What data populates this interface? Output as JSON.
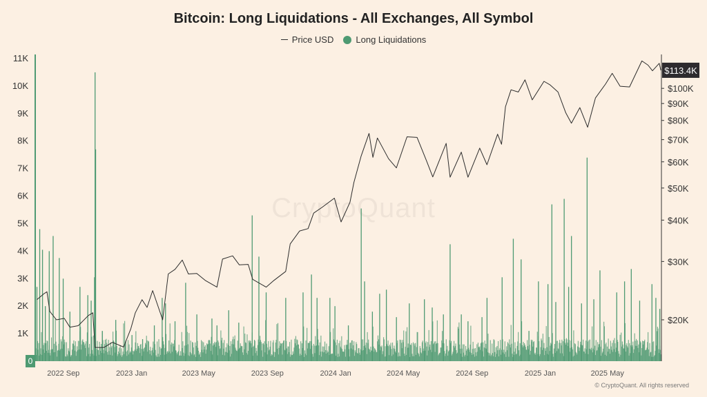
{
  "title": "Bitcoin: Long Liquidations - All Exchanges, All Symbol",
  "legend": {
    "price_label": "Price USD",
    "liq_label": "Long Liquidations"
  },
  "watermark": "CryptoQuant",
  "copyright": "© CryptoQuant. All rights reserved",
  "colors": {
    "background": "#fcf0e3",
    "price_line": "#2b2b2b",
    "liquidation": "#4e9a72",
    "tag_bg": "#2e2b2e"
  },
  "chart_data": {
    "type": "bar",
    "title": "Bitcoin: Long Liquidations - All Exchanges, All Symbol",
    "left_axis": {
      "ticks": [
        "0",
        "1K",
        "2K",
        "3K",
        "4K",
        "5K",
        "6K",
        "7K",
        "8K",
        "9K",
        "10K",
        "11K"
      ],
      "ylim": [
        0,
        11000
      ]
    },
    "right_axis": {
      "scale": "log",
      "ticks": [
        "$20K",
        "$30K",
        "$40K",
        "$50K",
        "$60K",
        "$70K",
        "$80K",
        "$90K",
        "$100K"
      ],
      "tick_values": [
        20000,
        30000,
        40000,
        50000,
        60000,
        70000,
        80000,
        90000,
        100000
      ],
      "ylim": [
        15000,
        123000
      ]
    },
    "current_price_label": "$113.4K",
    "x_ticks": [
      "2022 Sep",
      "2023 Jan",
      "2023 May",
      "2023 Sep",
      "2024 Jan",
      "2024 May",
      "2024 Sep",
      "2025 Jan",
      "2025 May"
    ],
    "x_tick_dates": [
      "2022-09-01",
      "2023-01-01",
      "2023-05-01",
      "2023-09-01",
      "2024-01-01",
      "2024-05-01",
      "2024-09-01",
      "2025-01-01",
      "2025-05-01"
    ],
    "xlim": [
      "2022-07-25",
      "2025-08-18"
    ],
    "series": [
      {
        "name": "Price USD",
        "type": "line",
        "points": [
          [
            "2022-07-28",
            23000
          ],
          [
            "2022-08-10",
            24000
          ],
          [
            "2022-08-15",
            24300
          ],
          [
            "2022-08-20",
            21200
          ],
          [
            "2022-09-01",
            20000
          ],
          [
            "2022-09-15",
            20200
          ],
          [
            "2022-09-25",
            19000
          ],
          [
            "2022-10-10",
            19200
          ],
          [
            "2022-10-28",
            20600
          ],
          [
            "2022-11-05",
            21000
          ],
          [
            "2022-11-09",
            16500
          ],
          [
            "2022-11-25",
            16500
          ],
          [
            "2022-12-10",
            17100
          ],
          [
            "2022-12-30",
            16550
          ],
          [
            "2023-01-12",
            18800
          ],
          [
            "2023-01-20",
            21000
          ],
          [
            "2023-02-01",
            23000
          ],
          [
            "2023-02-10",
            21800
          ],
          [
            "2023-02-20",
            24500
          ],
          [
            "2023-03-10",
            20000
          ],
          [
            "2023-03-20",
            27500
          ],
          [
            "2023-04-01",
            28400
          ],
          [
            "2023-04-14",
            30300
          ],
          [
            "2023-04-25",
            27500
          ],
          [
            "2023-05-10",
            27600
          ],
          [
            "2023-05-25",
            26300
          ],
          [
            "2023-06-15",
            25100
          ],
          [
            "2023-06-25",
            30500
          ],
          [
            "2023-07-13",
            31200
          ],
          [
            "2023-07-25",
            29300
          ],
          [
            "2023-08-10",
            29400
          ],
          [
            "2023-08-18",
            26500
          ],
          [
            "2023-09-11",
            25100
          ],
          [
            "2023-09-25",
            26300
          ],
          [
            "2023-10-16",
            28000
          ],
          [
            "2023-10-24",
            33900
          ],
          [
            "2023-11-10",
            37100
          ],
          [
            "2023-11-25",
            37700
          ],
          [
            "2023-12-05",
            42000
          ],
          [
            "2023-12-20",
            43700
          ],
          [
            "2024-01-11",
            46600
          ],
          [
            "2024-01-23",
            39500
          ],
          [
            "2024-02-08",
            45300
          ],
          [
            "2024-02-15",
            52000
          ],
          [
            "2024-02-28",
            62500
          ],
          [
            "2024-03-13",
            73100
          ],
          [
            "2024-03-20",
            61900
          ],
          [
            "2024-03-28",
            70800
          ],
          [
            "2024-04-17",
            61300
          ],
          [
            "2024-05-01",
            57500
          ],
          [
            "2024-05-20",
            71400
          ],
          [
            "2024-06-07",
            71100
          ],
          [
            "2024-06-24",
            60300
          ],
          [
            "2024-07-05",
            54000
          ],
          [
            "2024-07-29",
            68200
          ],
          [
            "2024-08-05",
            53900
          ],
          [
            "2024-08-25",
            64200
          ],
          [
            "2024-09-06",
            53900
          ],
          [
            "2024-09-27",
            66000
          ],
          [
            "2024-10-10",
            58800
          ],
          [
            "2024-10-29",
            72700
          ],
          [
            "2024-11-05",
            67800
          ],
          [
            "2024-11-12",
            88000
          ],
          [
            "2024-11-22",
            99000
          ],
          [
            "2024-12-05",
            97500
          ],
          [
            "2024-12-17",
            106100
          ],
          [
            "2024-12-30",
            92300
          ],
          [
            "2025-01-20",
            105000
          ],
          [
            "2025-01-31",
            102400
          ],
          [
            "2025-02-14",
            97500
          ],
          [
            "2025-02-28",
            84300
          ],
          [
            "2025-03-10",
            78500
          ],
          [
            "2025-03-25",
            87500
          ],
          [
            "2025-04-08",
            76300
          ],
          [
            "2025-04-22",
            93500
          ],
          [
            "2025-05-10",
            103000
          ],
          [
            "2025-05-22",
            111000
          ],
          [
            "2025-06-05",
            101500
          ],
          [
            "2025-06-22",
            101000
          ],
          [
            "2025-07-14",
            121000
          ],
          [
            "2025-07-25",
            117500
          ],
          [
            "2025-08-02",
            113000
          ],
          [
            "2025-08-14",
            119000
          ],
          [
            "2025-08-17",
            113400
          ]
        ]
      },
      {
        "name": "Long Liquidations",
        "type": "bar",
        "spikes": [
          [
            "2022-07-28",
            2700
          ],
          [
            "2022-08-02",
            4800
          ],
          [
            "2022-08-07",
            4050
          ],
          [
            "2022-08-12",
            2000
          ],
          [
            "2022-08-19",
            4000
          ],
          [
            "2022-08-26",
            4550
          ],
          [
            "2022-09-06",
            3750
          ],
          [
            "2022-09-13",
            3000
          ],
          [
            "2022-09-25",
            1800
          ],
          [
            "2022-10-13",
            2700
          ],
          [
            "2022-10-27",
            2400
          ],
          [
            "2022-11-02",
            2200
          ],
          [
            "2022-11-08",
            3050
          ],
          [
            "2022-11-09",
            10500
          ],
          [
            "2022-11-10",
            7700
          ],
          [
            "2022-11-22",
            1100
          ],
          [
            "2022-12-16",
            1500
          ],
          [
            "2023-01-14",
            950
          ],
          [
            "2023-02-02",
            800
          ],
          [
            "2023-02-23",
            1300
          ],
          [
            "2023-03-09",
            2300
          ],
          [
            "2023-03-15",
            2100
          ],
          [
            "2023-04-01",
            1450
          ],
          [
            "2023-04-20",
            2850
          ],
          [
            "2023-05-10",
            1700
          ],
          [
            "2023-06-06",
            1550
          ],
          [
            "2023-06-15",
            1300
          ],
          [
            "2023-07-06",
            1850
          ],
          [
            "2023-07-24",
            1400
          ],
          [
            "2023-08-17",
            5300
          ],
          [
            "2023-08-29",
            3800
          ],
          [
            "2023-09-11",
            2500
          ],
          [
            "2023-10-16",
            2300
          ],
          [
            "2023-11-16",
            2500
          ],
          [
            "2023-12-01",
            3150
          ],
          [
            "2023-12-11",
            2300
          ],
          [
            "2024-01-03",
            2300
          ],
          [
            "2024-01-12",
            2000
          ],
          [
            "2024-02-05",
            1300
          ],
          [
            "2024-02-28",
            5550
          ],
          [
            "2024-03-05",
            2900
          ],
          [
            "2024-03-19",
            1800
          ],
          [
            "2024-04-01",
            2450
          ],
          [
            "2024-04-13",
            2600
          ],
          [
            "2024-05-01",
            1600
          ],
          [
            "2024-05-24",
            2100
          ],
          [
            "2024-06-20",
            2250
          ],
          [
            "2024-07-04",
            1950
          ],
          [
            "2024-07-24",
            1700
          ],
          [
            "2024-08-05",
            4250
          ],
          [
            "2024-08-25",
            1700
          ],
          [
            "2024-09-06",
            1450
          ],
          [
            "2024-10-01",
            1600
          ],
          [
            "2024-10-10",
            2300
          ],
          [
            "2024-11-06",
            3050
          ],
          [
            "2024-11-26",
            4450
          ],
          [
            "2024-12-10",
            3700
          ],
          [
            "2024-12-24",
            1100
          ],
          [
            "2025-01-10",
            2900
          ],
          [
            "2025-01-27",
            2800
          ],
          [
            "2025-02-03",
            5700
          ],
          [
            "2025-02-10",
            2150
          ],
          [
            "2025-02-25",
            5900
          ],
          [
            "2025-03-05",
            2700
          ],
          [
            "2025-03-10",
            4550
          ],
          [
            "2025-03-28",
            2100
          ],
          [
            "2025-04-07",
            7400
          ],
          [
            "2025-04-19",
            2250
          ],
          [
            "2025-04-30",
            3300
          ],
          [
            "2025-05-30",
            2500
          ],
          [
            "2025-06-13",
            2900
          ],
          [
            "2025-06-25",
            3350
          ],
          [
            "2025-07-10",
            2200
          ],
          [
            "2025-08-01",
            2800
          ],
          [
            "2025-08-08",
            2300
          ],
          [
            "2025-08-15",
            1900
          ]
        ]
      }
    ]
  }
}
